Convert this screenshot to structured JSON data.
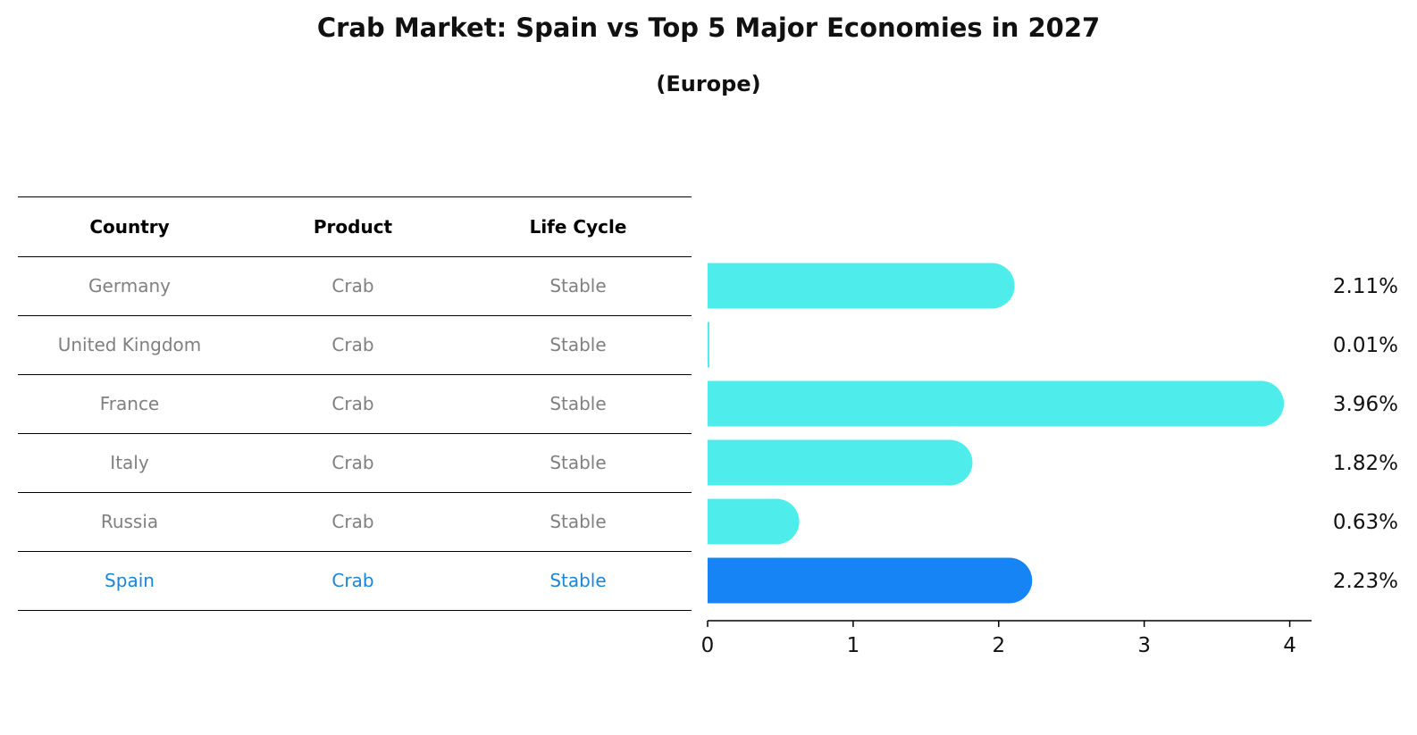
{
  "title": "Crab Market: Spain vs Top 5 Major Economies in 2027",
  "subtitle": "(Europe)",
  "table": {
    "headers": [
      "Country",
      "Product",
      "Life Cycle"
    ],
    "rows": [
      {
        "country": "Germany",
        "product": "Crab",
        "life_cycle": "Stable"
      },
      {
        "country": "United Kingdom",
        "product": "Crab",
        "life_cycle": "Stable"
      },
      {
        "country": "France",
        "product": "Crab",
        "life_cycle": "Stable"
      },
      {
        "country": "Italy",
        "product": "Crab",
        "life_cycle": "Stable"
      },
      {
        "country": "Russia",
        "product": "Crab",
        "life_cycle": "Stable"
      },
      {
        "country": "Spain",
        "product": "Crab",
        "life_cycle": "Stable"
      }
    ],
    "highlight_color": "#1a86d8",
    "text_color": "#808080"
  },
  "chart_data": {
    "type": "bar",
    "orientation": "horizontal",
    "categories": [
      "Germany",
      "United Kingdom",
      "France",
      "Italy",
      "Russia",
      "Spain"
    ],
    "values": [
      2.11,
      0.01,
      3.96,
      1.82,
      0.63,
      2.23
    ],
    "value_labels": [
      "2.11%",
      "0.01%",
      "3.96%",
      "1.82%",
      "0.63%",
      "2.23%"
    ],
    "xlim": [
      0,
      4.15
    ],
    "xticks": [
      0,
      1,
      2,
      3,
      4
    ],
    "xtick_labels": [
      "0",
      "1",
      "2",
      "3",
      "4"
    ],
    "bar_color": "#4eeceb",
    "highlight_color": "#1784f5",
    "highlight_index": 5,
    "grid": false
  }
}
